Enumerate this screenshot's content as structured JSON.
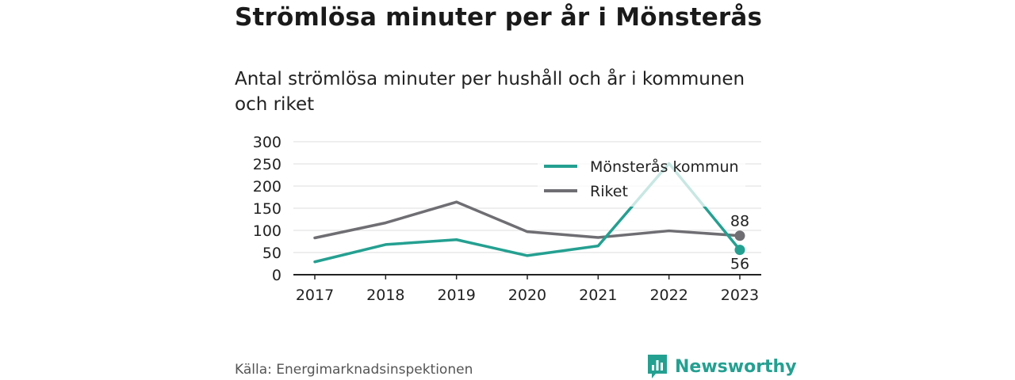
{
  "title": "Strömlösa minuter per år i Mönsterås",
  "subtitle": "Antal strömlösa minuter per hushåll och år i kommunen och riket",
  "source": "Källa: Energimarknadsinspektionen",
  "brand": {
    "name": "Newsworthy",
    "icon": "newsworthy-logo-icon",
    "color": "#24a091"
  },
  "chart_data": {
    "type": "line",
    "categories": [
      "2017",
      "2018",
      "2019",
      "2020",
      "2021",
      "2022",
      "2023"
    ],
    "ylim": [
      0,
      300
    ],
    "yticks": [
      0,
      50,
      100,
      150,
      200,
      250,
      300
    ],
    "grid": true,
    "legend_position": "top-right",
    "series": [
      {
        "name": "Mönsterås kommun",
        "color": "#24a091",
        "values": [
          29,
          68,
          79,
          43,
          65,
          251,
          56
        ],
        "end_label": "56"
      },
      {
        "name": "Riket",
        "color": "#6e6e73",
        "values": [
          83,
          117,
          164,
          97,
          84,
          99,
          88
        ],
        "end_label": "88"
      }
    ]
  }
}
